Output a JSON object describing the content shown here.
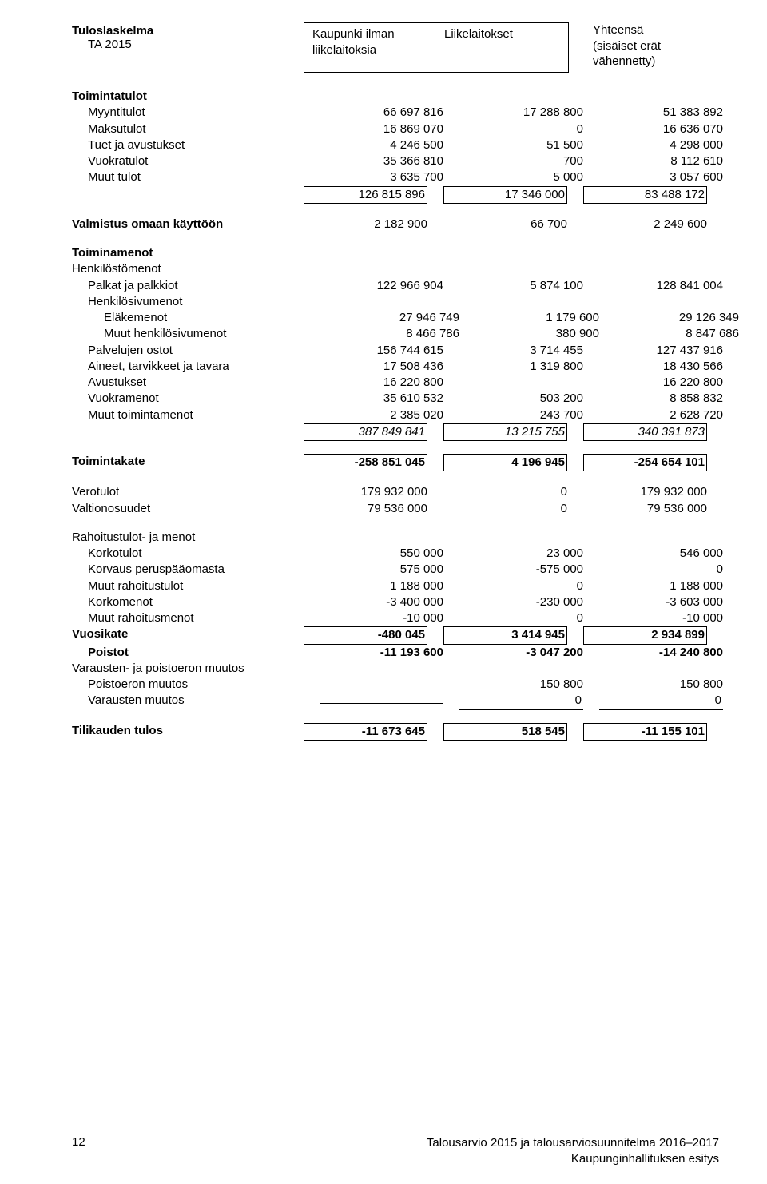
{
  "title": "Tuloslaskelma",
  "subtitle_left": "TA 2015",
  "header": {
    "col1a": "Kaupunki ilman",
    "col1b": "liikelaitoksia",
    "col2a": "Liikelaitokset",
    "col3a": "Yhteensä",
    "col3b": "(sisäiset erät",
    "col3c": "vähennetty)"
  },
  "toimintatulot_label": "Toimintatulot",
  "toimintatulot": [
    {
      "label": "Myyntitulot",
      "a": "66 697 816",
      "b": "17 288 800",
      "c": "51 383 892",
      "indent": "indent1"
    },
    {
      "label": "Maksutulot",
      "a": "16 869 070",
      "b": "0",
      "c": "16 636 070",
      "indent": "indent1"
    },
    {
      "label": "Tuet ja avustukset",
      "a": "4 246 500",
      "b": "51 500",
      "c": "4 298 000",
      "indent": "indent1"
    },
    {
      "label": "Vuokratulot",
      "a": "35 366 810",
      "b": "700",
      "c": "8 112 610",
      "indent": "indent1"
    },
    {
      "label": "Muut tulot",
      "a": "3 635 700",
      "b": "5 000",
      "c": "3 057 600",
      "indent": "indent1"
    }
  ],
  "toimintatulot_sum": {
    "a": "126 815 896",
    "b": "17 346 000",
    "c": "83 488 172"
  },
  "valmistus": {
    "label": "Valmistus omaan käyttöön",
    "a": "2 182 900",
    "b": "66 700",
    "c": "2 249 600"
  },
  "toiminamenot_label": "Toiminamenot",
  "henkilostomenot_label": "Henkilöstömenot",
  "palkat": {
    "label": "Palkat ja palkkiot",
    "a": "122 966 904",
    "b": "5 874 100",
    "c": "128 841 004",
    "indent": "indent1"
  },
  "henkilosivumenot_label": "Henkilösivumenot",
  "elakemenot": {
    "label": "Eläkemenot",
    "a": "27 946 749",
    "b": "1 179 600",
    "c": "29 126 349",
    "indent": "indent2"
  },
  "muuths": {
    "label": "Muut henkilösivumenot",
    "a": "8 466 786",
    "b": "380 900",
    "c": "8 847 686",
    "indent": "indent2"
  },
  "toim_rows": [
    {
      "label": "Palvelujen ostot",
      "a": "156 744 615",
      "b": "3 714 455",
      "c": "127 437 916",
      "indent": "indent1"
    },
    {
      "label": "Aineet, tarvikkeet ja tavara",
      "a": "17 508 436",
      "b": "1 319 800",
      "c": "18 430 566",
      "indent": "indent1"
    },
    {
      "label": "Avustukset",
      "a": "16 220 800",
      "b": "",
      "c": "16 220 800",
      "indent": "indent1"
    },
    {
      "label": "Vuokramenot",
      "a": "35 610 532",
      "b": "503 200",
      "c": "8 858 832",
      "indent": "indent1"
    },
    {
      "label": "Muut toimintamenot",
      "a": "2 385 020",
      "b": "243 700",
      "c": "2 628 720",
      "indent": "indent1"
    }
  ],
  "toim_sum": {
    "a": "387 849 841",
    "b": "13 215 755",
    "c": "340 391 873"
  },
  "toimintakate": {
    "label": "Toimintakate",
    "a": "-258 851 045",
    "b": "4 196 945",
    "c": "-254 654 101"
  },
  "verotulot": {
    "label": "Verotulot",
    "a": "179 932 000",
    "b": "0",
    "c": "179 932 000"
  },
  "valtionosuudet": {
    "label": "Valtionosuudet",
    "a": "79 536 000",
    "b": "0",
    "c": "79 536 000"
  },
  "rahoitus_label": "Rahoitustulot- ja menot",
  "rahoitus": [
    {
      "label": "Korkotulot",
      "a": "550 000",
      "b": "23 000",
      "c": "546 000",
      "indent": "indent1"
    },
    {
      "label": "Korvaus peruspääomasta",
      "a": "575 000",
      "b": "-575 000",
      "c": "0",
      "indent": "indent1"
    },
    {
      "label": "Muut rahoitustulot",
      "a": "1 188 000",
      "b": "0",
      "c": "1 188 000",
      "indent": "indent1"
    },
    {
      "label": "Korkomenot",
      "a": "-3 400 000",
      "b": "-230 000",
      "c": "-3 603 000",
      "indent": "indent1"
    },
    {
      "label": "Muut rahoitusmenot",
      "a": "-10 000",
      "b": "0",
      "c": "-10 000",
      "indent": "indent1"
    }
  ],
  "vuosikate": {
    "label": "Vuosikate",
    "a": "-480 045",
    "b": "3 414 945",
    "c": "2 934 899"
  },
  "poistot": {
    "label": "Poistot",
    "a": "-11 193 600",
    "b": "-3 047 200",
    "c": "-14 240 800",
    "indent": "indent1"
  },
  "varausten_label": "Varausten- ja poistoeron muutos",
  "poistoeron": {
    "label": "Poistoeron muutos",
    "a": "",
    "b": "150 800",
    "c": "150 800",
    "indent": "indent1"
  },
  "varausten": {
    "label": "Varausten muutos",
    "a": "",
    "b": "0",
    "c": "0",
    "indent": "indent1"
  },
  "tilikauden": {
    "label": "Tilikauden tulos",
    "a": "-11 673 645",
    "b": "518 545",
    "c": "-11 155 101"
  },
  "footer": {
    "page": "12",
    "line1": "Talousarvio 2015 ja talousarviosuunnitelma 2016–2017",
    "line2": "Kaupunginhallituksen esitys"
  }
}
